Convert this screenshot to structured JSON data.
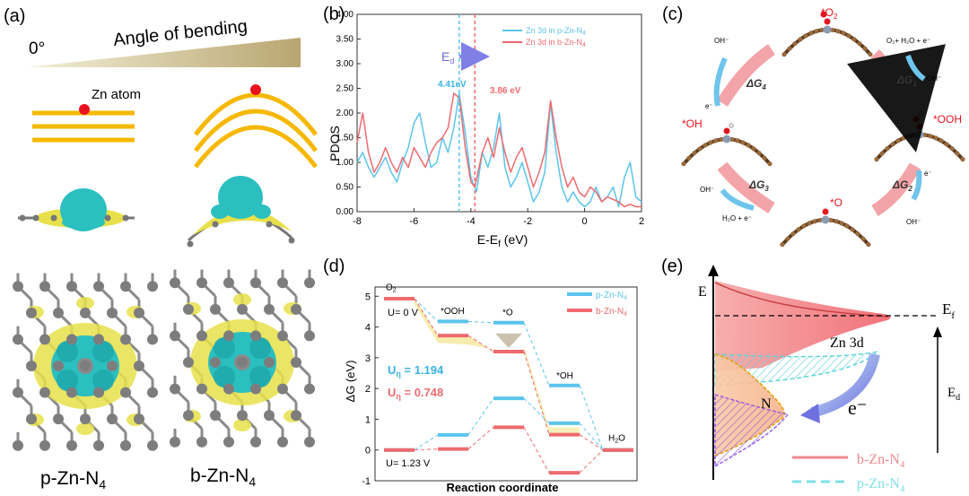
{
  "panels": {
    "a": {
      "label": "(a)",
      "angle_zero": "0°",
      "angle_text": "Angle  of bending",
      "zn_atom": "Zn atom",
      "p_name": "p-Zn-N",
      "b_name": "b-Zn-N",
      "sub4": "4"
    },
    "b": {
      "label": "(b)",
      "ylabel": "PDOS",
      "xlabel_main": "E-E",
      "xlabel_sub": "f",
      "xlabel_unit": " (eV)",
      "legend_p": "Zn 3d in p-Zn-N",
      "legend_b": "Zn 3d in b-Zn-N",
      "sub4": "4",
      "ed_main": "E",
      "ed_sub": "d",
      "marker_p_text": "4.41eV",
      "marker_b_text": "3.86 eV"
    },
    "c": {
      "label": "(c)",
      "states": {
        "o2": "*O",
        "o2_sub": "2",
        "ooh": "*OOH",
        "o": "*O",
        "oh": "*OH"
      },
      "dg1": "ΔG",
      "dg1_sub": "1",
      "dg2": "ΔG",
      "dg2_sub": "2",
      "dg3": "ΔG",
      "dg3_sub": "3",
      "dg4": "ΔG",
      "dg4_sub": "4",
      "oh_minus": "OH⁻",
      "e_minus": "e⁻",
      "reactants_top": "O₂+ H₂O + e⁻",
      "reactants_bottom": "H₂O + e⁻"
    },
    "d": {
      "label": "(d)",
      "ylabel": "ΔG (eV)",
      "xlabel": "Reaction coordinate",
      "legend_p": "p-Zn-N",
      "legend_b": "b-Zn-N",
      "sub4": "4",
      "u0": "U= 0 V",
      "u123": "U= 1.23 V",
      "eta_p_main": "U",
      "eta_p_sub": "η",
      "eta_p_val": " = 1.194",
      "eta_b_main": "U",
      "eta_b_sub": "η",
      "eta_b_val": " = 0.748",
      "labels": {
        "o2": "O",
        "o2_sub": "2",
        "ooh": "*OOH",
        "o": "*O",
        "oh": "*OH",
        "h2o": "H",
        "h2o_sub": "2",
        "h2o_end": "O"
      }
    },
    "e": {
      "label": "(e)",
      "e_axis": "E",
      "ef_main": "E",
      "ef_sub": "f",
      "zn3d": "Zn  3d",
      "n": "N",
      "e_minus": "e⁻",
      "ed_main": "E",
      "ed_sub": "d",
      "legend_b": "b-Zn-N",
      "legend_p": "p-Zn-N",
      "sub4": "4"
    }
  },
  "colors": {
    "blue": "#5cc4ec",
    "red": "#ee6b6f",
    "gold": "#f5b800",
    "cyan_iso": "#2bbfc0",
    "yellow_iso": "#e8e04a"
  },
  "chart_data": [
    {
      "type": "line",
      "panel": "b",
      "title": "",
      "xlabel": "E-Ef (eV)",
      "ylabel": "PDOS",
      "xlim": [
        -8,
        2
      ],
      "ylim": [
        0,
        4.0
      ],
      "xticks": [
        -8,
        -6,
        -4,
        -2,
        0,
        2
      ],
      "yticks": [
        0.0,
        0.5,
        1.0,
        1.5,
        2.0,
        2.5,
        3.0,
        3.5,
        4.0
      ],
      "series": [
        {
          "name": "Zn 3d in p-Zn-N4",
          "x": [
            -8,
            -7.8,
            -7.6,
            -7.4,
            -7.2,
            -7.0,
            -6.8,
            -6.6,
            -6.4,
            -6.2,
            -6.0,
            -5.8,
            -5.6,
            -5.4,
            -5.2,
            -5.0,
            -4.8,
            -4.6,
            -4.41,
            -4.2,
            -4.0,
            -3.8,
            -3.6,
            -3.4,
            -3.2,
            -3.0,
            -2.8,
            -2.6,
            -2.4,
            -2.2,
            -2.0,
            -1.8,
            -1.6,
            -1.4,
            -1.2,
            -1.0,
            -0.8,
            -0.6,
            -0.4,
            -0.2,
            0.0,
            0.2,
            0.4,
            0.6,
            0.8,
            1.0,
            1.2,
            1.4,
            1.6,
            1.8,
            2.0
          ],
          "y": [
            1.0,
            1.2,
            0.9,
            0.7,
            0.9,
            1.1,
            0.8,
            0.6,
            1.0,
            1.3,
            1.8,
            2.0,
            1.4,
            0.9,
            1.0,
            1.5,
            1.2,
            1.7,
            2.4,
            1.6,
            0.7,
            0.4,
            1.2,
            0.9,
            1.3,
            2.0,
            0.9,
            0.5,
            0.7,
            1.0,
            0.6,
            0.2,
            0.4,
            0.8,
            2.2,
            1.2,
            0.5,
            0.2,
            0.4,
            0.2,
            0.1,
            0.2,
            0.5,
            0.2,
            0.3,
            0.5,
            0.1,
            0.7,
            1.0,
            0.3,
            0.2
          ]
        },
        {
          "name": "Zn 3d in b-Zn-N4",
          "x": [
            -8,
            -7.8,
            -7.6,
            -7.4,
            -7.2,
            -7.0,
            -6.8,
            -6.6,
            -6.4,
            -6.2,
            -6.0,
            -5.8,
            -5.6,
            -5.4,
            -5.2,
            -5.0,
            -4.8,
            -4.6,
            -4.4,
            -4.2,
            -4.0,
            -3.86,
            -3.6,
            -3.4,
            -3.2,
            -3.0,
            -2.8,
            -2.6,
            -2.4,
            -2.2,
            -2.0,
            -1.8,
            -1.6,
            -1.4,
            -1.2,
            -1.0,
            -0.8,
            -0.6,
            -0.4,
            -0.2,
            0.0,
            0.2,
            0.4,
            0.6,
            0.8,
            1.0,
            1.2,
            1.4,
            1.6,
            1.8,
            2.0
          ],
          "y": [
            1.4,
            2.0,
            1.2,
            0.8,
            1.0,
            1.3,
            1.0,
            0.8,
            1.1,
            0.9,
            1.3,
            1.1,
            0.9,
            1.2,
            1.4,
            1.5,
            1.7,
            2.4,
            2.3,
            1.3,
            0.6,
            0.5,
            1.2,
            1.5,
            1.1,
            1.7,
            1.2,
            0.8,
            1.1,
            1.3,
            0.9,
            0.5,
            0.8,
            1.2,
            2.25,
            1.5,
            0.9,
            0.5,
            0.7,
            0.4,
            0.3,
            0.5,
            0.4,
            0.2,
            0.3,
            0.25,
            0.2,
            0.1,
            0.15,
            0.1,
            0.1
          ]
        }
      ],
      "markers": [
        {
          "series": "p",
          "x": -4.41,
          "label": "4.41eV"
        },
        {
          "series": "b",
          "x": -3.86,
          "label": "3.86 eV"
        }
      ]
    },
    {
      "type": "line",
      "panel": "d",
      "title": "",
      "xlabel": "Reaction coordinate",
      "ylabel": "ΔG (eV)",
      "ylim": [
        -1,
        5.3
      ],
      "yticks": [
        -1,
        0,
        1,
        2,
        3,
        4,
        5
      ],
      "steps": [
        "O2",
        "*OOH",
        "*O",
        "*OH",
        "H2O"
      ],
      "series": [
        {
          "name": "p-Zn-N4 (U= 0 V)",
          "values": [
            4.92,
            4.18,
            4.14,
            2.1,
            0.0
          ]
        },
        {
          "name": "b-Zn-N4 (U= 0 V)",
          "values": [
            4.92,
            3.72,
            3.2,
            0.5,
            0.0
          ]
        },
        {
          "name": "p-Zn-N4 (U= 1.23 V)",
          "values": [
            0.0,
            0.49,
            1.68,
            0.87,
            0.0
          ]
        },
        {
          "name": "b-Zn-N4 (U= 1.23 V)",
          "values": [
            0.0,
            0.03,
            0.74,
            -0.74,
            0.0
          ]
        }
      ],
      "annotations": [
        "Uη = 1.194",
        "Uη = 0.748"
      ]
    }
  ]
}
